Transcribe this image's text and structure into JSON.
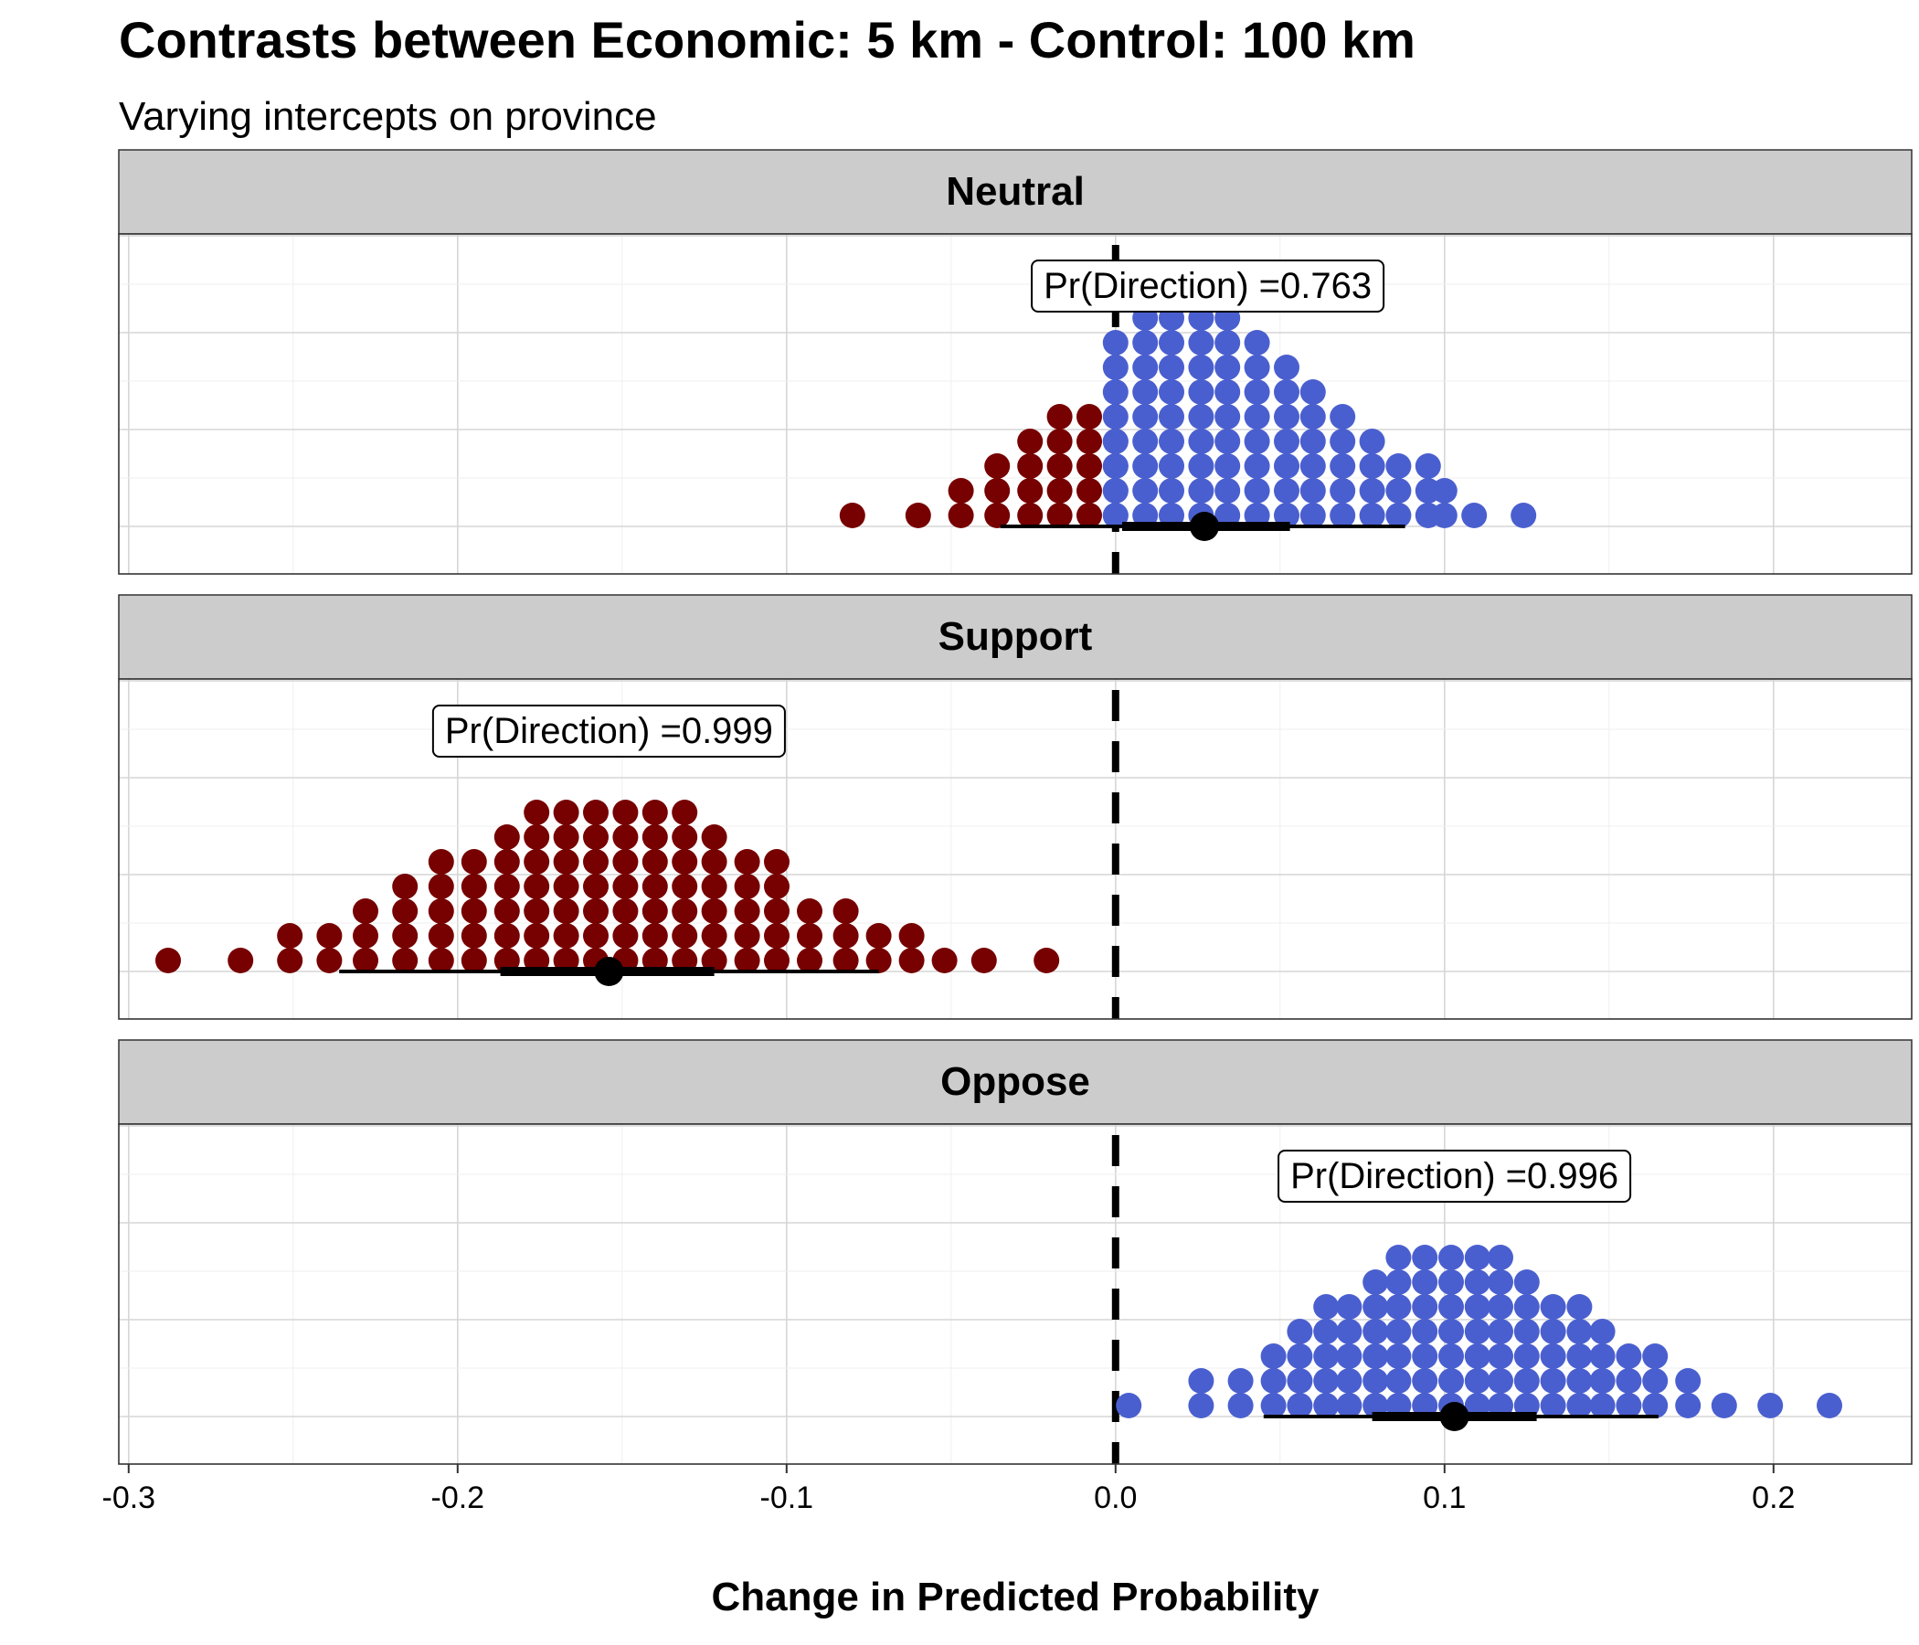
{
  "chart_data": {
    "type": "dotplot",
    "title": "Contrasts between Economic: 5 km - Control: 100 km",
    "subtitle": "Varying intercepts on province",
    "xlabel": "Change in Predicted Probability",
    "xlim": [
      -0.303,
      0.242
    ],
    "x_ticks": [
      -0.3,
      -0.2,
      -0.1,
      0.0,
      0.1,
      0.2
    ],
    "x_tick_labels": [
      "-0.3",
      "-0.2",
      "-0.1",
      "0.0",
      "0.1",
      "0.2"
    ],
    "reference_line": 0.0,
    "grid": true,
    "colors": {
      "negative": "#770000",
      "positive": "#4a5fcf",
      "strip": "#cccccc"
    },
    "panels": [
      {
        "name": "Neutral",
        "pr_direction_label": "Pr(Direction) =0.763",
        "pr_direction_x": 0.028,
        "point_estimate": 0.027,
        "interval_66": [
          0.002,
          0.053
        ],
        "interval_95": [
          -0.035,
          0.088
        ],
        "stacks": [
          {
            "x": -0.08,
            "n": 1
          },
          {
            "x": -0.06,
            "n": 1
          },
          {
            "x": -0.047,
            "n": 2
          },
          {
            "x": -0.036,
            "n": 3
          },
          {
            "x": -0.026,
            "n": 4
          },
          {
            "x": -0.017,
            "n": 5
          },
          {
            "x": -0.008,
            "n": 5
          },
          {
            "x": 0.0,
            "n": 4
          },
          {
            "x": 0.0,
            "n": 8
          },
          {
            "x": 0.009,
            "n": 9
          },
          {
            "x": 0.017,
            "n": 9
          },
          {
            "x": 0.026,
            "n": 9
          },
          {
            "x": 0.034,
            "n": 9
          },
          {
            "x": 0.043,
            "n": 8
          },
          {
            "x": 0.052,
            "n": 7
          },
          {
            "x": 0.06,
            "n": 6
          },
          {
            "x": 0.069,
            "n": 5
          },
          {
            "x": 0.078,
            "n": 4
          },
          {
            "x": 0.086,
            "n": 3
          },
          {
            "x": 0.095,
            "n": 3
          },
          {
            "x": 0.1,
            "n": 2
          },
          {
            "x": 0.109,
            "n": 1
          },
          {
            "x": 0.124,
            "n": 1
          }
        ]
      },
      {
        "name": "Support",
        "pr_direction_label": "Pr(Direction) =0.999",
        "pr_direction_x": -0.154,
        "point_estimate": -0.154,
        "interval_66": [
          -0.187,
          -0.122
        ],
        "interval_95": [
          -0.236,
          -0.072
        ],
        "stacks": [
          {
            "x": -0.288,
            "n": 1
          },
          {
            "x": -0.266,
            "n": 1
          },
          {
            "x": -0.251,
            "n": 2
          },
          {
            "x": -0.239,
            "n": 2
          },
          {
            "x": -0.228,
            "n": 3
          },
          {
            "x": -0.216,
            "n": 4
          },
          {
            "x": -0.205,
            "n": 5
          },
          {
            "x": -0.195,
            "n": 5
          },
          {
            "x": -0.185,
            "n": 6
          },
          {
            "x": -0.176,
            "n": 7
          },
          {
            "x": -0.167,
            "n": 7
          },
          {
            "x": -0.158,
            "n": 7
          },
          {
            "x": -0.149,
            "n": 7
          },
          {
            "x": -0.14,
            "n": 7
          },
          {
            "x": -0.131,
            "n": 7
          },
          {
            "x": -0.122,
            "n": 6
          },
          {
            "x": -0.112,
            "n": 5
          },
          {
            "x": -0.103,
            "n": 5
          },
          {
            "x": -0.093,
            "n": 3
          },
          {
            "x": -0.082,
            "n": 3
          },
          {
            "x": -0.072,
            "n": 2
          },
          {
            "x": -0.062,
            "n": 2
          },
          {
            "x": -0.052,
            "n": 1
          },
          {
            "x": -0.04,
            "n": 1
          },
          {
            "x": -0.021,
            "n": 1
          }
        ]
      },
      {
        "name": "Oppose",
        "pr_direction_label": "Pr(Direction) =0.996",
        "pr_direction_x": 0.103,
        "point_estimate": 0.103,
        "interval_66": [
          0.078,
          0.128
        ],
        "interval_95": [
          0.045,
          0.165
        ],
        "stacks": [
          {
            "x": 0.004,
            "n": 1
          },
          {
            "x": 0.026,
            "n": 2
          },
          {
            "x": 0.038,
            "n": 2
          },
          {
            "x": 0.048,
            "n": 3
          },
          {
            "x": 0.056,
            "n": 4
          },
          {
            "x": 0.064,
            "n": 5
          },
          {
            "x": 0.071,
            "n": 5
          },
          {
            "x": 0.079,
            "n": 6
          },
          {
            "x": 0.086,
            "n": 7
          },
          {
            "x": 0.094,
            "n": 7
          },
          {
            "x": 0.102,
            "n": 7
          },
          {
            "x": 0.11,
            "n": 7
          },
          {
            "x": 0.117,
            "n": 7
          },
          {
            "x": 0.125,
            "n": 6
          },
          {
            "x": 0.133,
            "n": 5
          },
          {
            "x": 0.141,
            "n": 5
          },
          {
            "x": 0.148,
            "n": 4
          },
          {
            "x": 0.156,
            "n": 3
          },
          {
            "x": 0.164,
            "n": 3
          },
          {
            "x": 0.174,
            "n": 2
          },
          {
            "x": 0.185,
            "n": 1
          },
          {
            "x": 0.199,
            "n": 1
          },
          {
            "x": 0.217,
            "n": 1
          }
        ]
      }
    ]
  }
}
